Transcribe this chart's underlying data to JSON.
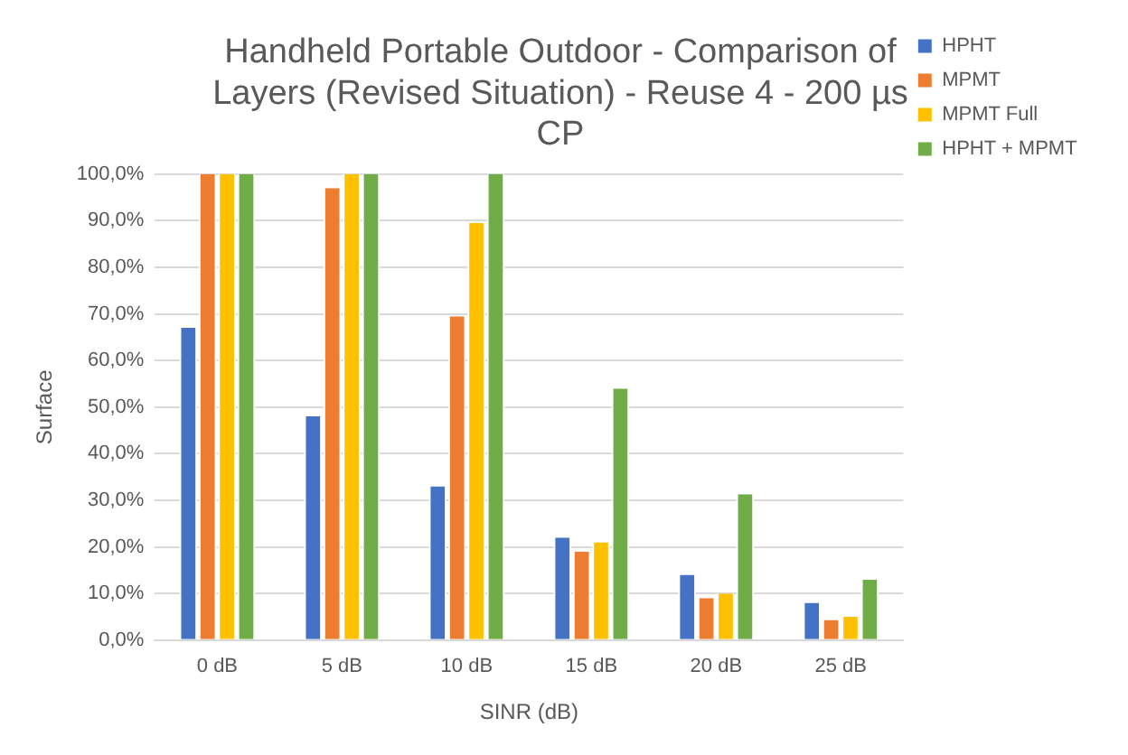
{
  "chart_data": {
    "type": "bar",
    "title": "Handheld Portable Outdoor - Comparison of Layers (Revised Situation) - Reuse 4 - 200 µs CP",
    "xlabel": "SINR (dB)",
    "ylabel": "Surface",
    "categories": [
      "0 dB",
      "5 dB",
      "10 dB",
      "15 dB",
      "20 dB",
      "25 dB"
    ],
    "series": [
      {
        "name": "HPHT",
        "color": "#4472c4",
        "values": [
          67,
          48,
          33,
          22,
          14,
          8
        ]
      },
      {
        "name": "MPMT",
        "color": "#ed7d31",
        "values": [
          100,
          97,
          69.5,
          19,
          9,
          4.3
        ]
      },
      {
        "name": "MPMT Full",
        "color": "#ffc000",
        "values": [
          100,
          100,
          89.5,
          21,
          10,
          5
        ]
      },
      {
        "name": "HPHT + MPMT",
        "color": "#70ad47",
        "values": [
          100,
          100,
          100,
          54,
          31.3,
          13
        ]
      }
    ],
    "ylim": [
      0,
      100
    ],
    "yticks": [
      {
        "value": 0,
        "label": "0,0%"
      },
      {
        "value": 10,
        "label": "10,0%"
      },
      {
        "value": 20,
        "label": "20,0%"
      },
      {
        "value": 30,
        "label": "30,0%"
      },
      {
        "value": 40,
        "label": "40,0%"
      },
      {
        "value": 50,
        "label": "50,0%"
      },
      {
        "value": 60,
        "label": "60,0%"
      },
      {
        "value": 70,
        "label": "70,0%"
      },
      {
        "value": 80,
        "label": "80,0%"
      },
      {
        "value": 90,
        "label": "90,0%"
      },
      {
        "value": 100,
        "label": "100,0%"
      }
    ],
    "grid": "y",
    "legend": "right"
  }
}
